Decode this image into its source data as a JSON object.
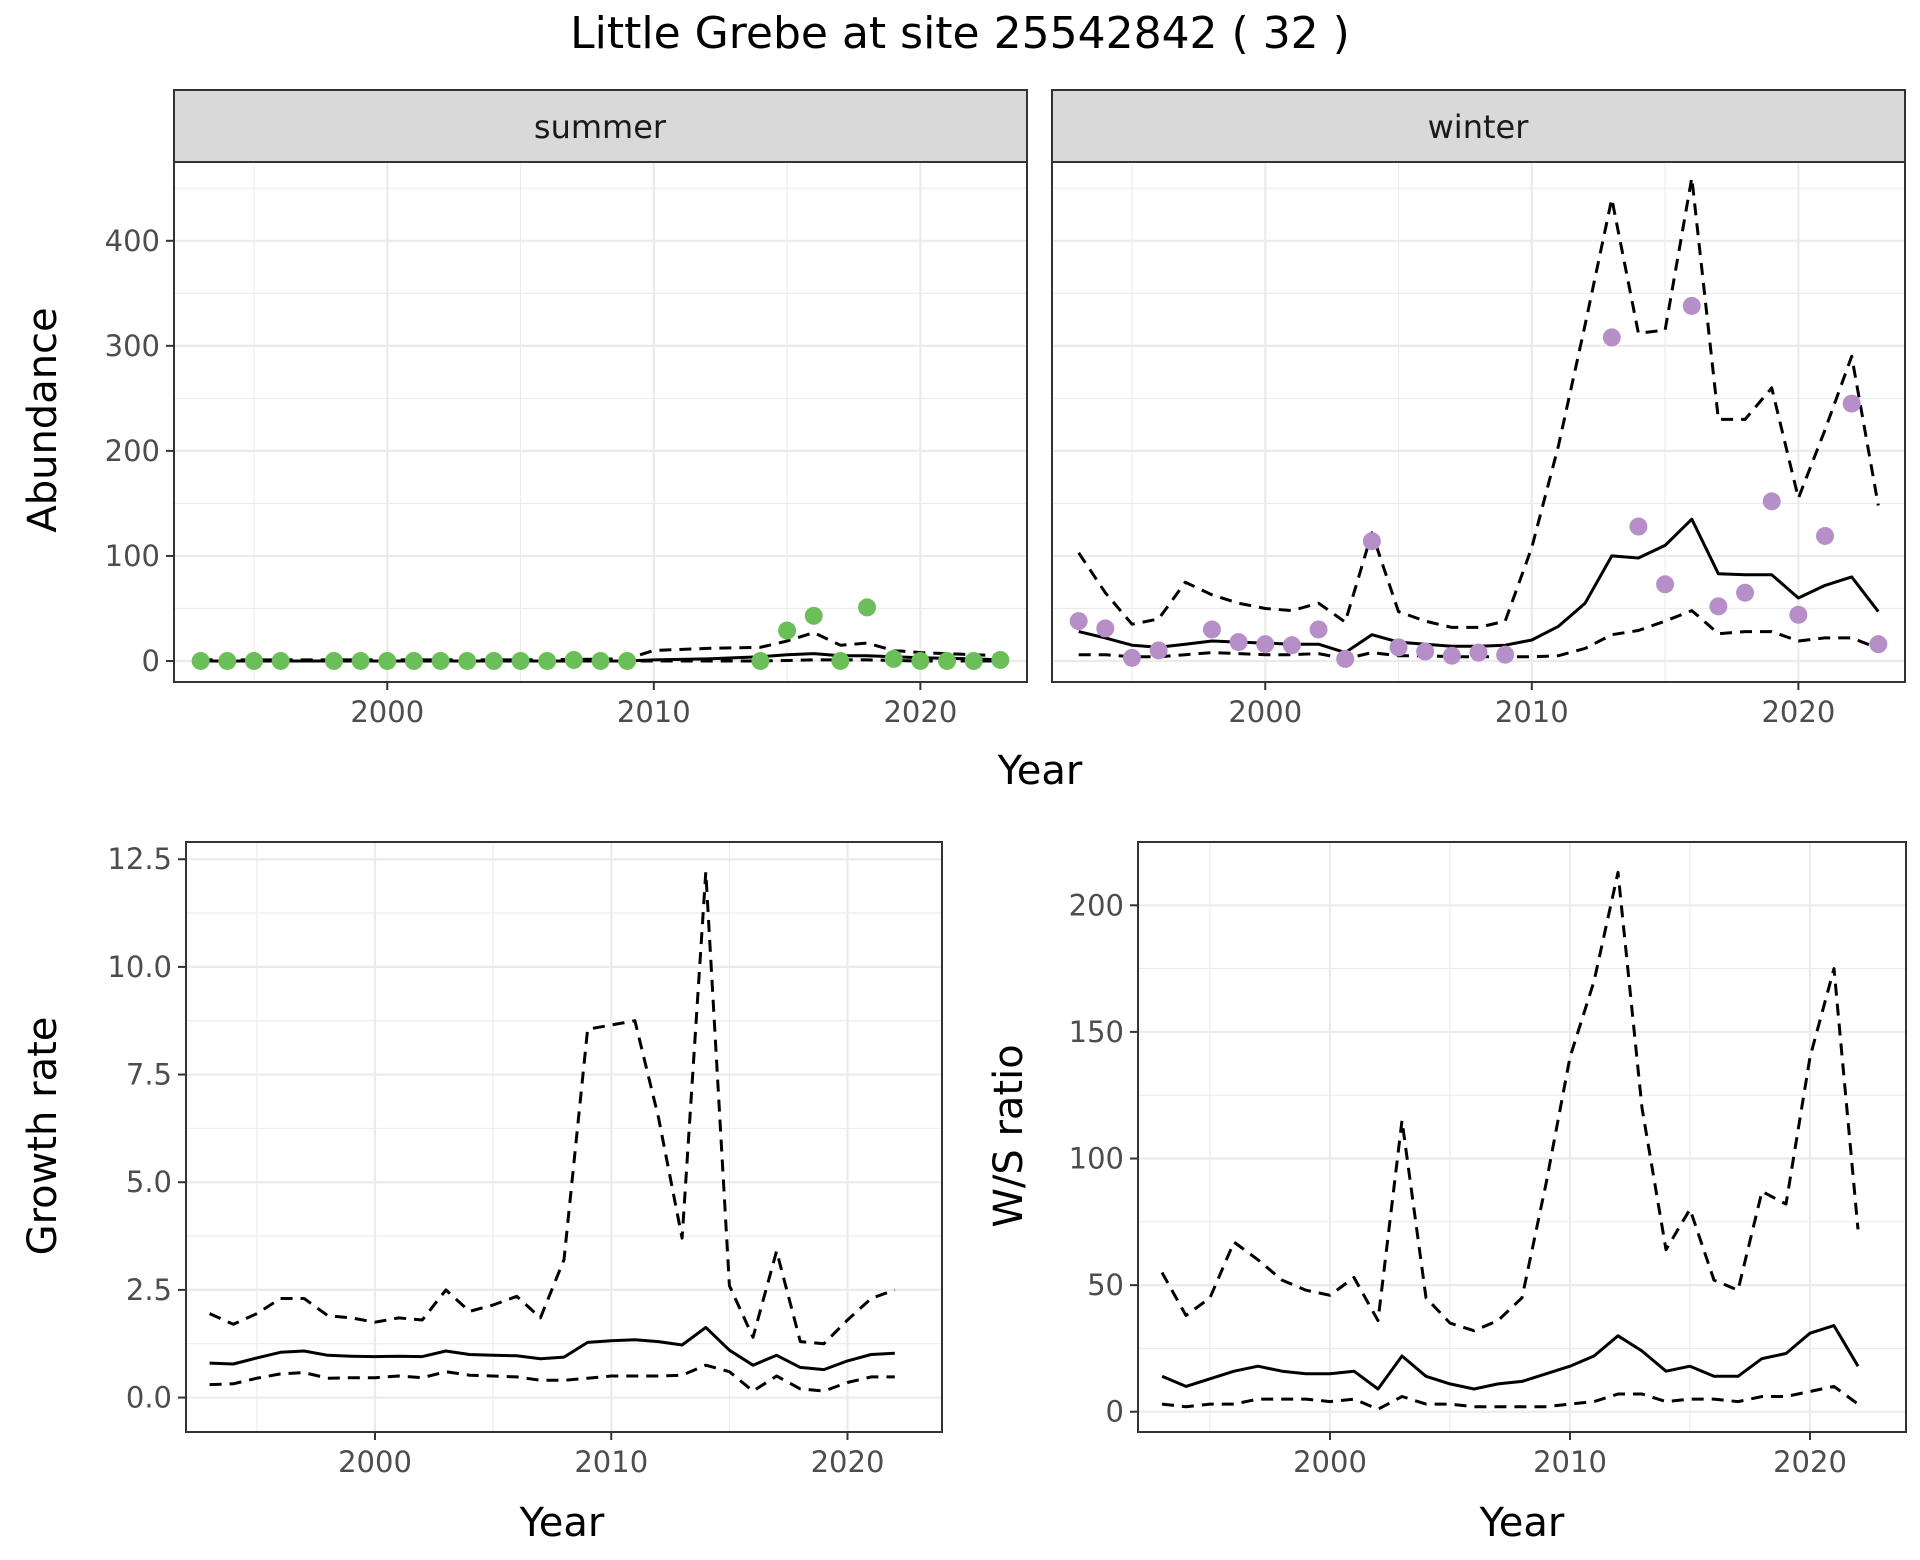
{
  "title": "Little Grebe at site 25542842 ( 32 )",
  "facets": {
    "summer_label": "summer",
    "winter_label": "winter"
  },
  "labels": {
    "abundance_ylabel": "Abundance",
    "top_xlabel": "Year",
    "growth_ylabel": "Growth rate",
    "growth_xlabel": "Year",
    "ws_ylabel": "W/S ratio",
    "ws_xlabel": "Year"
  },
  "colors": {
    "summer_points": "#6BBF59",
    "winter_points": "#B68FC9",
    "lines": "#000000",
    "strip_bg": "#D9D9D9",
    "grid": "#EBEBEB"
  },
  "chart_data": [
    {
      "type": "scatter",
      "panel": "summer",
      "title": "summer",
      "xlabel": "Year",
      "ylabel": "Abundance",
      "xlim": [
        1992,
        2024
      ],
      "ylim": [
        -20,
        475
      ],
      "xticks": [
        2000,
        2010,
        2020
      ],
      "yticks": [
        0,
        100,
        200,
        300,
        400
      ],
      "grid": true,
      "points": {
        "x": [
          1993,
          1994,
          1995,
          1996,
          1998,
          1999,
          2000,
          2001,
          2002,
          2003,
          2004,
          2005,
          2006,
          2007,
          2008,
          2009,
          2014,
          2015,
          2016,
          2017,
          2018,
          2019,
          2020,
          2021,
          2022,
          2023
        ],
        "y": [
          0,
          0,
          0,
          0,
          0,
          0,
          0,
          0,
          0,
          0,
          0,
          0,
          0,
          1,
          0,
          0,
          0,
          29,
          43,
          0,
          51,
          2,
          0,
          0,
          0,
          1
        ]
      },
      "series": [
        {
          "role": "estimate",
          "x": [
            1993,
            1995,
            2000,
            2005,
            2009,
            2010,
            2012,
            2014,
            2015,
            2016,
            2017,
            2018,
            2019,
            2020,
            2022,
            2023
          ],
          "y": [
            0,
            0,
            0,
            0,
            0,
            1,
            2,
            4,
            6,
            7,
            5,
            5,
            4,
            3,
            2,
            1
          ]
        },
        {
          "role": "upper",
          "x": [
            1993,
            1995,
            2000,
            2005,
            2009,
            2010,
            2012,
            2014,
            2015,
            2016,
            2017,
            2018,
            2019,
            2020,
            2022,
            2023
          ],
          "y": [
            1,
            1,
            1,
            1,
            2,
            10,
            12,
            13,
            19,
            27,
            15,
            17,
            10,
            8,
            6,
            5
          ]
        },
        {
          "role": "lower",
          "x": [
            1993,
            2000,
            2009,
            2014,
            2016,
            2018,
            2020,
            2023
          ],
          "y": [
            0,
            0,
            0,
            0,
            1,
            1,
            0,
            0
          ]
        }
      ]
    },
    {
      "type": "scatter",
      "panel": "winter",
      "title": "winter",
      "xlabel": "Year",
      "ylabel": "Abundance",
      "xlim": [
        1992,
        2024
      ],
      "ylim": [
        -20,
        475
      ],
      "xticks": [
        2000,
        2010,
        2020
      ],
      "yticks": [
        0,
        100,
        200,
        300,
        400
      ],
      "grid": true,
      "points": {
        "x": [
          1993,
          1994,
          1995,
          1996,
          1998,
          1999,
          2000,
          2001,
          2002,
          2003,
          2004,
          2005,
          2006,
          2007,
          2008,
          2009,
          2013,
          2014,
          2015,
          2016,
          2017,
          2018,
          2019,
          2020,
          2021,
          2022,
          2023
        ],
        "y": [
          38,
          31,
          3,
          10,
          30,
          18,
          16,
          15,
          30,
          2,
          114,
          13,
          9,
          5,
          8,
          6,
          308,
          128,
          73,
          338,
          52,
          65,
          152,
          44,
          119,
          245,
          16
        ]
      },
      "series": [
        {
          "role": "estimate",
          "x": [
            1993,
            1994,
            1995,
            1996,
            1997,
            1998,
            1999,
            2000,
            2001,
            2002,
            2003,
            2004,
            2005,
            2006,
            2007,
            2008,
            2009,
            2010,
            2011,
            2012,
            2013,
            2014,
            2015,
            2016,
            2017,
            2018,
            2019,
            2020,
            2021,
            2022,
            2023
          ],
          "y": [
            28,
            22,
            15,
            13,
            16,
            19,
            18,
            17,
            16,
            16,
            8,
            25,
            18,
            16,
            14,
            14,
            15,
            20,
            33,
            55,
            100,
            98,
            110,
            135,
            83,
            82,
            82,
            60,
            72,
            80,
            47
          ]
        },
        {
          "role": "upper",
          "x": [
            1993,
            1994,
            1995,
            1996,
            1997,
            1998,
            1999,
            2000,
            2001,
            2002,
            2003,
            2004,
            2005,
            2006,
            2007,
            2008,
            2009,
            2010,
            2011,
            2012,
            2013,
            2014,
            2015,
            2016,
            2017,
            2018,
            2019,
            2020,
            2021,
            2022,
            2023
          ],
          "y": [
            103,
            65,
            35,
            40,
            75,
            63,
            55,
            50,
            48,
            55,
            37,
            122,
            47,
            38,
            32,
            32,
            38,
            108,
            205,
            320,
            440,
            312,
            315,
            460,
            230,
            230,
            260,
            155,
            220,
            290,
            148
          ]
        },
        {
          "role": "lower",
          "x": [
            1993,
            1994,
            1995,
            1996,
            1997,
            1998,
            1999,
            2000,
            2001,
            2002,
            2003,
            2004,
            2005,
            2006,
            2007,
            2008,
            2009,
            2010,
            2011,
            2012,
            2013,
            2014,
            2015,
            2016,
            2017,
            2018,
            2019,
            2020,
            2021,
            2022,
            2023
          ],
          "y": [
            6,
            6,
            4,
            4,
            6,
            8,
            7,
            6,
            6,
            7,
            2,
            8,
            5,
            5,
            4,
            4,
            4,
            4,
            5,
            12,
            25,
            29,
            38,
            48,
            26,
            28,
            28,
            19,
            22,
            22,
            12
          ]
        }
      ]
    },
    {
      "type": "line",
      "panel": "growth",
      "xlabel": "Year",
      "ylabel": "Growth rate",
      "xlim": [
        1992,
        2024
      ],
      "ylim": [
        -0.8,
        12.9
      ],
      "xticks": [
        2000,
        2010,
        2020
      ],
      "yticks": [
        0.0,
        2.5,
        5.0,
        7.5,
        10.0,
        12.5
      ],
      "ytick_labels": [
        "0.0",
        "2.5",
        "5.0",
        "7.5",
        "10.0",
        "12.5"
      ],
      "grid": true,
      "series": [
        {
          "role": "estimate",
          "x": [
            1993,
            1994,
            1995,
            1996,
            1997,
            1998,
            1999,
            2000,
            2001,
            2002,
            2003,
            2004,
            2005,
            2006,
            2007,
            2008,
            2009,
            2010,
            2011,
            2012,
            2013,
            2014,
            2015,
            2016,
            2017,
            2018,
            2019,
            2020,
            2021,
            2022
          ],
          "y": [
            0.8,
            0.78,
            0.92,
            1.05,
            1.08,
            0.98,
            0.96,
            0.95,
            0.96,
            0.95,
            1.08,
            1.0,
            0.98,
            0.97,
            0.9,
            0.94,
            1.28,
            1.32,
            1.34,
            1.3,
            1.22,
            1.63,
            1.1,
            0.75,
            0.98,
            0.7,
            0.65,
            0.85,
            1.0,
            1.03
          ]
        },
        {
          "role": "upper",
          "x": [
            1993,
            1994,
            1995,
            1996,
            1997,
            1998,
            1999,
            2000,
            2001,
            2002,
            2003,
            2004,
            2005,
            2006,
            2007,
            2008,
            2009,
            2010,
            2011,
            2012,
            2013,
            2014,
            2015,
            2016,
            2017,
            2018,
            2019,
            2020,
            2021,
            2022
          ],
          "y": [
            1.95,
            1.7,
            1.95,
            2.3,
            2.3,
            1.9,
            1.85,
            1.75,
            1.85,
            1.8,
            2.5,
            2.0,
            2.15,
            2.35,
            1.85,
            3.2,
            8.55,
            8.65,
            8.75,
            6.5,
            3.7,
            12.2,
            2.6,
            1.4,
            3.4,
            1.3,
            1.25,
            1.8,
            2.3,
            2.5
          ]
        },
        {
          "role": "lower",
          "x": [
            1993,
            1994,
            1995,
            1996,
            1997,
            1998,
            1999,
            2000,
            2001,
            2002,
            2003,
            2004,
            2005,
            2006,
            2007,
            2008,
            2009,
            2010,
            2011,
            2012,
            2013,
            2014,
            2015,
            2016,
            2017,
            2018,
            2019,
            2020,
            2021,
            2022
          ],
          "y": [
            0.3,
            0.32,
            0.45,
            0.55,
            0.58,
            0.45,
            0.46,
            0.46,
            0.5,
            0.46,
            0.6,
            0.52,
            0.5,
            0.48,
            0.4,
            0.4,
            0.45,
            0.5,
            0.5,
            0.5,
            0.52,
            0.75,
            0.6,
            0.15,
            0.5,
            0.2,
            0.15,
            0.35,
            0.48,
            0.48
          ]
        }
      ]
    },
    {
      "type": "line",
      "panel": "ws_ratio",
      "xlabel": "Year",
      "ylabel": "W/S ratio",
      "xlim": [
        1992,
        2024
      ],
      "ylim": [
        -8,
        225
      ],
      "xticks": [
        2000,
        2010,
        2020
      ],
      "yticks": [
        0,
        50,
        100,
        150,
        200
      ],
      "grid": true,
      "series": [
        {
          "role": "estimate",
          "x": [
            1993,
            1994,
            1995,
            1996,
            1997,
            1998,
            1999,
            2000,
            2001,
            2002,
            2003,
            2004,
            2005,
            2006,
            2007,
            2008,
            2009,
            2010,
            2011,
            2012,
            2013,
            2014,
            2015,
            2016,
            2017,
            2018,
            2019,
            2020,
            2021,
            2022
          ],
          "y": [
            14,
            10,
            13,
            16,
            18,
            16,
            15,
            15,
            16,
            9,
            22,
            14,
            11,
            9,
            11,
            12,
            15,
            18,
            22,
            30,
            24,
            16,
            18,
            14,
            14,
            21,
            23,
            31,
            34,
            18
          ]
        },
        {
          "role": "upper",
          "x": [
            1993,
            1994,
            1995,
            1996,
            1997,
            1998,
            1999,
            2000,
            2001,
            2002,
            2003,
            2004,
            2005,
            2006,
            2007,
            2008,
            2009,
            2010,
            2011,
            2012,
            2013,
            2014,
            2015,
            2016,
            2017,
            2018,
            2019,
            2020,
            2021,
            2022
          ],
          "y": [
            55,
            38,
            45,
            67,
            60,
            52,
            48,
            46,
            53,
            36,
            115,
            45,
            35,
            32,
            36,
            45,
            90,
            140,
            170,
            213,
            120,
            64,
            80,
            52,
            48,
            87,
            82,
            140,
            175,
            72
          ]
        },
        {
          "role": "lower",
          "x": [
            1993,
            1994,
            1995,
            1996,
            1997,
            1998,
            1999,
            2000,
            2001,
            2002,
            2003,
            2004,
            2005,
            2006,
            2007,
            2008,
            2009,
            2010,
            2011,
            2012,
            2013,
            2014,
            2015,
            2016,
            2017,
            2018,
            2019,
            2020,
            2021,
            2022
          ],
          "y": [
            3,
            2,
            3,
            3,
            5,
            5,
            5,
            4,
            5,
            1,
            6,
            3,
            3,
            2,
            2,
            2,
            2,
            3,
            4,
            7,
            7,
            4,
            5,
            5,
            4,
            6,
            6,
            8,
            10,
            3
          ]
        }
      ]
    }
  ]
}
